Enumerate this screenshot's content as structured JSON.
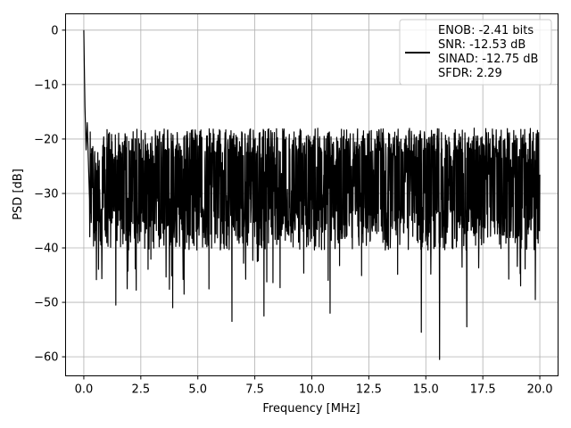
{
  "chart_data": {
    "type": "line",
    "xlabel": "Frequency [MHz]",
    "ylabel": "PSD [dB]",
    "xlim": [
      -0.8,
      20.8
    ],
    "ylim": [
      -63.5,
      3
    ],
    "xticks": [
      0.0,
      2.5,
      5.0,
      7.5,
      10.0,
      12.5,
      15.0,
      17.5,
      20.0
    ],
    "xtick_labels": [
      "0.0",
      "2.5",
      "5.0",
      "7.5",
      "10.0",
      "12.5",
      "15.0",
      "17.5",
      "20.0"
    ],
    "yticks": [
      0,
      -10,
      -20,
      -30,
      -40,
      -50,
      -60
    ],
    "ytick_labels": [
      "0",
      "−10",
      "−20",
      "−30",
      "−40",
      "−50",
      "−60"
    ],
    "grid": true,
    "legend_position": "top-right",
    "series": [
      {
        "legend_lines": [
          "ENOB: -2.41 bits",
          "SNR: -12.53 dB",
          "SINAD: -12.75 dB",
          "SFDR: 2.29"
        ],
        "color": "#000000",
        "x_range": [
          0,
          20
        ],
        "peak_points": [
          [
            0.0,
            0.0
          ],
          [
            0.02,
            -6
          ],
          [
            0.05,
            -14
          ],
          [
            0.1,
            -22
          ],
          [
            0.15,
            -17
          ],
          [
            0.2,
            -24
          ],
          [
            0.25,
            -31
          ]
        ],
        "envelope_upper": -21,
        "envelope_lower": -38,
        "notable_dips": [
          [
            1.4,
            -50.5
          ],
          [
            1.9,
            -47.5
          ],
          [
            3.9,
            -51
          ],
          [
            4.4,
            -48.5
          ],
          [
            6.5,
            -53.5
          ],
          [
            7.9,
            -52.5
          ],
          [
            10.8,
            -52
          ],
          [
            14.8,
            -55.5
          ],
          [
            15.6,
            -60.5
          ],
          [
            16.8,
            -54.5
          ],
          [
            19.8,
            -49.5
          ]
        ]
      }
    ]
  }
}
